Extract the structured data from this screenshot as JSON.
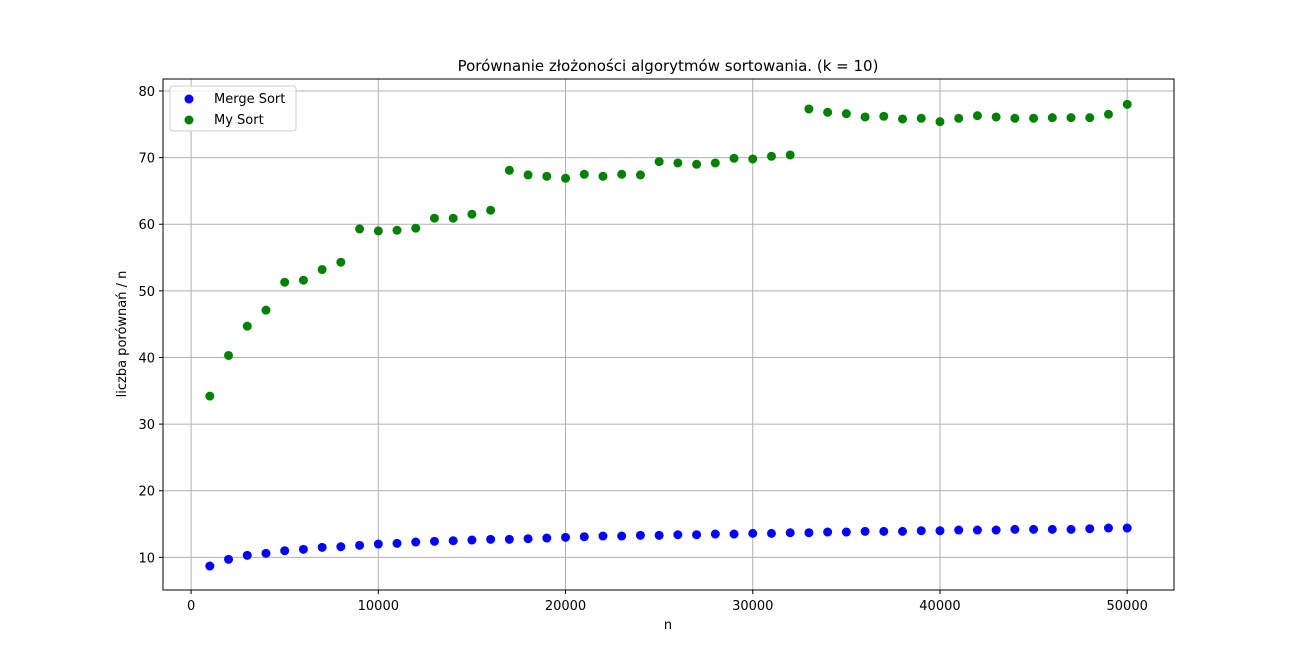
{
  "chart_data": {
    "type": "scatter",
    "title": "Porównanie złożoności algorytmów sortowania. (k = 10)",
    "xlabel": "n",
    "ylabel": "liczba porównań / n",
    "xlim": [
      -1500,
      52500
    ],
    "ylim": [
      5.1,
      81.8
    ],
    "xticks": [
      0,
      10000,
      20000,
      30000,
      40000,
      50000
    ],
    "yticks": [
      10,
      20,
      30,
      40,
      50,
      60,
      70,
      80
    ],
    "grid": true,
    "legend_position": "upper-left",
    "x": [
      1000,
      2000,
      3000,
      4000,
      5000,
      6000,
      7000,
      8000,
      9000,
      10000,
      11000,
      12000,
      13000,
      14000,
      15000,
      16000,
      17000,
      18000,
      19000,
      20000,
      21000,
      22000,
      23000,
      24000,
      25000,
      26000,
      27000,
      28000,
      29000,
      30000,
      31000,
      32000,
      33000,
      34000,
      35000,
      36000,
      37000,
      38000,
      39000,
      40000,
      41000,
      42000,
      43000,
      44000,
      45000,
      46000,
      47000,
      48000,
      49000,
      50000
    ],
    "series": [
      {
        "name": "Merge Sort",
        "color": "#0000ff",
        "values": [
          8.7,
          9.7,
          10.3,
          10.6,
          11.0,
          11.2,
          11.5,
          11.6,
          11.8,
          12.0,
          12.1,
          12.3,
          12.4,
          12.5,
          12.6,
          12.7,
          12.7,
          12.8,
          12.9,
          13.0,
          13.1,
          13.2,
          13.2,
          13.3,
          13.3,
          13.4,
          13.4,
          13.5,
          13.5,
          13.6,
          13.6,
          13.7,
          13.7,
          13.8,
          13.8,
          13.9,
          13.9,
          13.9,
          14.0,
          14.0,
          14.1,
          14.1,
          14.1,
          14.2,
          14.2,
          14.2,
          14.2,
          14.3,
          14.4,
          14.4
        ]
      },
      {
        "name": "My Sort",
        "color": "#008000",
        "values": [
          34.2,
          40.3,
          44.7,
          47.1,
          51.3,
          51.6,
          53.2,
          54.3,
          59.3,
          59.0,
          59.1,
          59.4,
          60.9,
          60.9,
          61.5,
          62.1,
          68.1,
          67.4,
          67.2,
          66.9,
          67.5,
          67.2,
          67.5,
          67.4,
          69.4,
          69.2,
          69.0,
          69.2,
          69.9,
          69.8,
          70.2,
          70.4,
          77.3,
          76.8,
          76.6,
          76.1,
          76.2,
          75.8,
          75.9,
          75.4,
          75.9,
          76.3,
          76.1,
          75.9,
          75.9,
          76.0,
          76.0,
          76.0,
          76.5,
          78.0
        ]
      }
    ]
  }
}
